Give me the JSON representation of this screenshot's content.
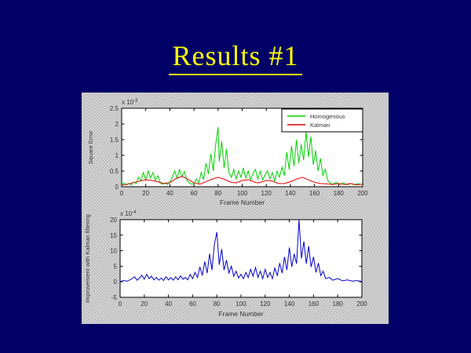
{
  "slide": {
    "title": "Results #1",
    "background_color": "#000066",
    "title_color": "#FFFF00"
  },
  "figure": {
    "background_color": "#C9C9C9"
  },
  "chart_data": [
    {
      "type": "line",
      "title": "",
      "xlabel": "Frame Number",
      "ylabel": "Square Error",
      "scale_label": "x 10^-3",
      "xlim": [
        0,
        200
      ],
      "ylim": [
        0,
        2.5
      ],
      "xticks": [
        0,
        20,
        40,
        60,
        80,
        100,
        120,
        140,
        160,
        180,
        200
      ],
      "yticks": [
        0,
        0.5,
        1,
        1.5,
        2,
        2.5
      ],
      "grid": false,
      "legend": true,
      "legend_position": "top-right",
      "series": [
        {
          "name": "Homogenous",
          "color": "#00D000",
          "points": [
            [
              0,
              0.07
            ],
            [
              2,
              0.12
            ],
            [
              4,
              0.06
            ],
            [
              6,
              0.1
            ],
            [
              8,
              0.06
            ],
            [
              10,
              0.15
            ],
            [
              12,
              0.1
            ],
            [
              14,
              0.3
            ],
            [
              16,
              0.18
            ],
            [
              18,
              0.45
            ],
            [
              20,
              0.22
            ],
            [
              22,
              0.5
            ],
            [
              24,
              0.28
            ],
            [
              26,
              0.45
            ],
            [
              28,
              0.2
            ],
            [
              30,
              0.35
            ],
            [
              32,
              0.12
            ],
            [
              34,
              0.08
            ],
            [
              36,
              0.12
            ],
            [
              38,
              0.07
            ],
            [
              40,
              0.15
            ],
            [
              42,
              0.3
            ],
            [
              44,
              0.5
            ],
            [
              46,
              0.28
            ],
            [
              48,
              0.55
            ],
            [
              50,
              0.32
            ],
            [
              52,
              0.48
            ],
            [
              54,
              0.22
            ],
            [
              56,
              0.12
            ],
            [
              58,
              0.08
            ],
            [
              60,
              0.1
            ],
            [
              62,
              0.25
            ],
            [
              64,
              0.12
            ],
            [
              66,
              0.45
            ],
            [
              68,
              0.22
            ],
            [
              70,
              0.75
            ],
            [
              72,
              0.4
            ],
            [
              74,
              1.05
            ],
            [
              76,
              0.5
            ],
            [
              78,
              1.35
            ],
            [
              80,
              1.9
            ],
            [
              81,
              0.8
            ],
            [
              83,
              1.45
            ],
            [
              85,
              0.6
            ],
            [
              87,
              1.2
            ],
            [
              89,
              0.45
            ],
            [
              91,
              0.3
            ],
            [
              93,
              0.55
            ],
            [
              95,
              0.25
            ],
            [
              97,
              0.5
            ],
            [
              99,
              0.3
            ],
            [
              101,
              0.6
            ],
            [
              103,
              0.28
            ],
            [
              105,
              0.5
            ],
            [
              107,
              0.22
            ],
            [
              109,
              0.42
            ],
            [
              111,
              0.55
            ],
            [
              113,
              0.25
            ],
            [
              115,
              0.5
            ],
            [
              117,
              0.22
            ],
            [
              119,
              0.38
            ],
            [
              121,
              0.5
            ],
            [
              123,
              0.25
            ],
            [
              125,
              0.45
            ],
            [
              127,
              0.18
            ],
            [
              129,
              0.5
            ],
            [
              131,
              0.3
            ],
            [
              133,
              0.62
            ],
            [
              135,
              0.35
            ],
            [
              137,
              1.1
            ],
            [
              139,
              0.55
            ],
            [
              141,
              1.3
            ],
            [
              143,
              0.65
            ],
            [
              145,
              1.5
            ],
            [
              147,
              0.75
            ],
            [
              149,
              1.35
            ],
            [
              151,
              0.85
            ],
            [
              153,
              1.75
            ],
            [
              155,
              0.95
            ],
            [
              157,
              1.6
            ],
            [
              159,
              0.7
            ],
            [
              161,
              1.15
            ],
            [
              163,
              0.5
            ],
            [
              165,
              0.9
            ],
            [
              167,
              0.35
            ],
            [
              169,
              0.55
            ],
            [
              171,
              0.2
            ],
            [
              173,
              0.12
            ],
            [
              175,
              0.08
            ],
            [
              178,
              0.14
            ],
            [
              181,
              0.07
            ],
            [
              184,
              0.12
            ],
            [
              187,
              0.06
            ],
            [
              190,
              0.1
            ],
            [
              193,
              0.06
            ],
            [
              196,
              0.1
            ],
            [
              200,
              0.06
            ]
          ]
        },
        {
          "name": "Kalman",
          "color": "#E00000",
          "points": [
            [
              0,
              0.05
            ],
            [
              5,
              0.08
            ],
            [
              10,
              0.13
            ],
            [
              15,
              0.18
            ],
            [
              20,
              0.22
            ],
            [
              25,
              0.2
            ],
            [
              30,
              0.16
            ],
            [
              35,
              0.1
            ],
            [
              40,
              0.13
            ],
            [
              45,
              0.26
            ],
            [
              50,
              0.33
            ],
            [
              55,
              0.24
            ],
            [
              60,
              0.12
            ],
            [
              65,
              0.08
            ],
            [
              70,
              0.16
            ],
            [
              75,
              0.24
            ],
            [
              80,
              0.3
            ],
            [
              85,
              0.24
            ],
            [
              90,
              0.15
            ],
            [
              95,
              0.12
            ],
            [
              100,
              0.2
            ],
            [
              105,
              0.22
            ],
            [
              110,
              0.15
            ],
            [
              113,
              0.12
            ],
            [
              117,
              0.16
            ],
            [
              120,
              0.2
            ],
            [
              125,
              0.18
            ],
            [
              130,
              0.1
            ],
            [
              135,
              0.1
            ],
            [
              140,
              0.16
            ],
            [
              145,
              0.24
            ],
            [
              150,
              0.3
            ],
            [
              155,
              0.22
            ],
            [
              160,
              0.14
            ],
            [
              165,
              0.1
            ],
            [
              170,
              0.09
            ],
            [
              175,
              0.07
            ],
            [
              180,
              0.1
            ],
            [
              185,
              0.07
            ],
            [
              190,
              0.1
            ],
            [
              195,
              0.06
            ],
            [
              200,
              0.08
            ]
          ]
        }
      ]
    },
    {
      "type": "line",
      "title": "",
      "xlabel": "Frame Number",
      "ylabel": "Improvement with Kalman filtering",
      "scale_label": "x 10^-4",
      "xlim": [
        0,
        200
      ],
      "ylim": [
        -5,
        20
      ],
      "xticks": [
        0,
        20,
        40,
        60,
        80,
        100,
        120,
        140,
        160,
        180,
        200
      ],
      "yticks": [
        -5,
        0,
        5,
        10,
        15,
        20
      ],
      "grid": false,
      "legend": false,
      "legend_position": null,
      "series": [
        {
          "name": "Improvement",
          "color": "#0000D0",
          "points": [
            [
              0,
              0.1
            ],
            [
              3,
              0.4
            ],
            [
              6,
              0.2
            ],
            [
              9,
              0.8
            ],
            [
              12,
              1.6
            ],
            [
              14,
              0.5
            ],
            [
              16,
              1.2
            ],
            [
              18,
              2.1
            ],
            [
              20,
              0.8
            ],
            [
              22,
              2.4
            ],
            [
              24,
              1
            ],
            [
              26,
              1.8
            ],
            [
              28,
              0.6
            ],
            [
              30,
              1.4
            ],
            [
              32,
              0.5
            ],
            [
              34,
              1.2
            ],
            [
              36,
              0.4
            ],
            [
              38,
              1.6
            ],
            [
              40,
              0.6
            ],
            [
              42,
              1.3
            ],
            [
              44,
              0.5
            ],
            [
              46,
              1.6
            ],
            [
              48,
              0.6
            ],
            [
              50,
              1.9
            ],
            [
              52,
              0.8
            ],
            [
              54,
              1.4
            ],
            [
              56,
              0.6
            ],
            [
              58,
              2.4
            ],
            [
              60,
              1
            ],
            [
              62,
              3
            ],
            [
              64,
              1.4
            ],
            [
              66,
              4.8
            ],
            [
              68,
              2
            ],
            [
              70,
              6.5
            ],
            [
              72,
              2.8
            ],
            [
              74,
              9
            ],
            [
              76,
              3.8
            ],
            [
              78,
              12
            ],
            [
              80,
              16
            ],
            [
              82,
              5.5
            ],
            [
              84,
              10.5
            ],
            [
              86,
              3.8
            ],
            [
              88,
              7
            ],
            [
              90,
              2.8
            ],
            [
              92,
              5
            ],
            [
              94,
              1.8
            ],
            [
              96,
              3.4
            ],
            [
              98,
              1.2
            ],
            [
              100,
              2.4
            ],
            [
              102,
              1
            ],
            [
              104,
              3
            ],
            [
              106,
              1.4
            ],
            [
              108,
              4
            ],
            [
              110,
              1.8
            ],
            [
              112,
              4.6
            ],
            [
              114,
              1.4
            ],
            [
              116,
              3.4
            ],
            [
              118,
              1
            ],
            [
              120,
              4
            ],
            [
              122,
              1.4
            ],
            [
              124,
              3
            ],
            [
              126,
              1
            ],
            [
              128,
              4.4
            ],
            [
              130,
              2
            ],
            [
              132,
              6
            ],
            [
              134,
              2.8
            ],
            [
              136,
              8
            ],
            [
              138,
              3.8
            ],
            [
              140,
              11
            ],
            [
              142,
              4.8
            ],
            [
              144,
              9
            ],
            [
              146,
              5.8
            ],
            [
              148,
              20
            ],
            [
              150,
              7.5
            ],
            [
              152,
              13
            ],
            [
              154,
              5.8
            ],
            [
              156,
              11.5
            ],
            [
              158,
              4.8
            ],
            [
              160,
              8
            ],
            [
              162,
              3
            ],
            [
              164,
              6
            ],
            [
              166,
              2
            ],
            [
              168,
              3.4
            ],
            [
              170,
              1
            ],
            [
              173,
              1.4
            ],
            [
              176,
              0.5
            ],
            [
              180,
              1
            ],
            [
              184,
              0.3
            ],
            [
              188,
              0.6
            ],
            [
              192,
              0.2
            ],
            [
              196,
              0.4
            ],
            [
              200,
              0.1
            ]
          ]
        }
      ]
    }
  ]
}
